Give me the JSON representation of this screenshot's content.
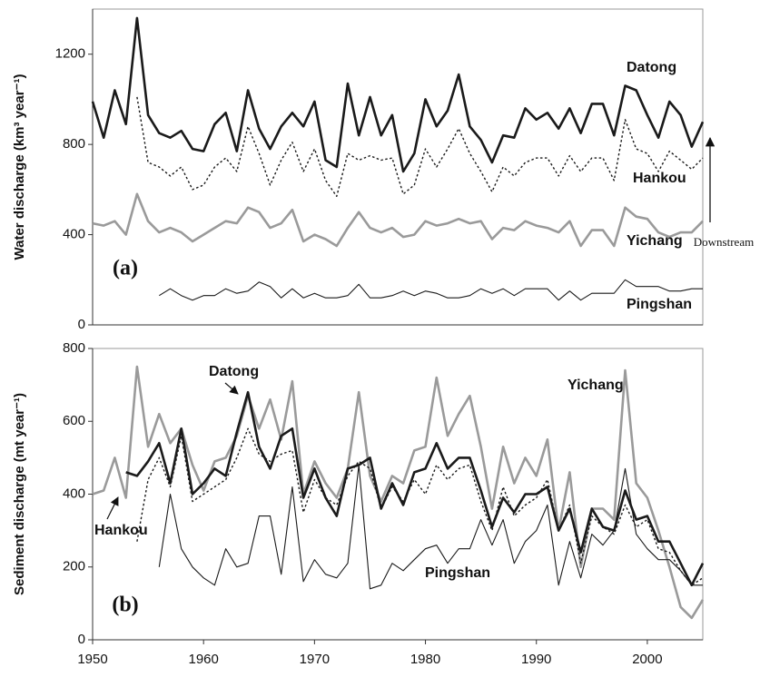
{
  "chart_data": [
    {
      "type": "line",
      "ylabel": "Water discharge (km³ year⁻¹)",
      "x": [
        1950,
        1951,
        1952,
        1953,
        1954,
        1955,
        1956,
        1957,
        1958,
        1959,
        1960,
        1961,
        1962,
        1963,
        1964,
        1965,
        1966,
        1967,
        1968,
        1969,
        1970,
        1971,
        1972,
        1973,
        1974,
        1975,
        1976,
        1977,
        1978,
        1979,
        1980,
        1981,
        1982,
        1983,
        1984,
        1985,
        1986,
        1987,
        1988,
        1989,
        1990,
        1991,
        1992,
        1993,
        1994,
        1995,
        1996,
        1997,
        1998,
        1999,
        2000,
        2001,
        2002,
        2003,
        2004,
        2005
      ],
      "xlim": [
        1950,
        2005
      ],
      "ylim": [
        0,
        1400
      ],
      "yticks": [
        0,
        400,
        800,
        1200
      ],
      "annotations": [
        "(a)",
        "Downstream"
      ],
      "series": [
        {
          "name": "Datong",
          "color": "#1a1a1a",
          "thick": true,
          "linestyle": "solid",
          "values": [
            990,
            830,
            1040,
            890,
            1360,
            930,
            850,
            830,
            860,
            780,
            770,
            890,
            940,
            770,
            1040,
            870,
            780,
            880,
            940,
            880,
            990,
            730,
            700,
            1070,
            840,
            1010,
            840,
            930,
            680,
            760,
            1000,
            880,
            950,
            1110,
            880,
            820,
            720,
            840,
            830,
            960,
            910,
            940,
            870,
            960,
            850,
            980,
            980,
            840,
            1060,
            1040,
            930,
            830,
            990,
            930,
            790,
            900
          ]
        },
        {
          "name": "Hankou",
          "color": "#1a1a1a",
          "thick": false,
          "linestyle": "dotted",
          "values": [
            null,
            null,
            null,
            null,
            1010,
            720,
            700,
            660,
            700,
            600,
            620,
            700,
            740,
            680,
            880,
            760,
            620,
            730,
            810,
            680,
            780,
            640,
            570,
            760,
            730,
            750,
            730,
            740,
            580,
            620,
            780,
            700,
            780,
            870,
            760,
            680,
            590,
            700,
            660,
            720,
            740,
            740,
            660,
            750,
            680,
            740,
            740,
            640,
            910,
            780,
            760,
            680,
            770,
            730,
            690,
            740
          ]
        },
        {
          "name": "Yichang",
          "color": "#9a9a9a",
          "thick": true,
          "linestyle": "solid",
          "values": [
            450,
            440,
            460,
            400,
            580,
            460,
            410,
            430,
            410,
            370,
            400,
            430,
            460,
            450,
            520,
            500,
            430,
            450,
            510,
            370,
            400,
            380,
            350,
            430,
            500,
            430,
            410,
            430,
            390,
            400,
            460,
            440,
            450,
            470,
            450,
            460,
            380,
            430,
            420,
            460,
            440,
            430,
            410,
            460,
            350,
            420,
            420,
            350,
            520,
            480,
            470,
            410,
            390,
            410,
            410,
            460
          ]
        },
        {
          "name": "Pingshan",
          "color": "#1a1a1a",
          "thick": false,
          "linestyle": "solid",
          "values": [
            null,
            null,
            null,
            null,
            null,
            null,
            130,
            160,
            130,
            110,
            130,
            130,
            160,
            140,
            150,
            190,
            170,
            120,
            160,
            120,
            140,
            120,
            120,
            130,
            180,
            120,
            120,
            130,
            150,
            130,
            150,
            140,
            120,
            120,
            130,
            160,
            140,
            160,
            130,
            160,
            160,
            160,
            110,
            150,
            110,
            140,
            140,
            140,
            200,
            170,
            170,
            170,
            150,
            150,
            160,
            160
          ]
        }
      ]
    },
    {
      "type": "line",
      "ylabel": "Sediment discharge (mt year⁻¹)",
      "x": [
        1950,
        1951,
        1952,
        1953,
        1954,
        1955,
        1956,
        1957,
        1958,
        1959,
        1960,
        1961,
        1962,
        1963,
        1964,
        1965,
        1966,
        1967,
        1968,
        1969,
        1970,
        1971,
        1972,
        1973,
        1974,
        1975,
        1976,
        1977,
        1978,
        1979,
        1980,
        1981,
        1982,
        1983,
        1984,
        1985,
        1986,
        1987,
        1988,
        1989,
        1990,
        1991,
        1992,
        1993,
        1994,
        1995,
        1996,
        1997,
        1998,
        1999,
        2000,
        2001,
        2002,
        2003,
        2004,
        2005
      ],
      "xlim": [
        1950,
        2005
      ],
      "xticks": [
        1950,
        1960,
        1970,
        1980,
        1990,
        2000
      ],
      "ylim": [
        0,
        800
      ],
      "yticks": [
        0,
        200,
        400,
        600,
        800
      ],
      "annotations": [
        "(b)"
      ],
      "series": [
        {
          "name": "Yichang",
          "color": "#9a9a9a",
          "thick": true,
          "linestyle": "solid",
          "values": [
            400,
            410,
            500,
            390,
            750,
            530,
            620,
            540,
            580,
            480,
            410,
            490,
            500,
            560,
            670,
            580,
            660,
            550,
            710,
            400,
            490,
            430,
            390,
            470,
            680,
            450,
            380,
            450,
            430,
            520,
            530,
            720,
            560,
            620,
            670,
            530,
            360,
            530,
            430,
            500,
            450,
            550,
            300,
            460,
            200,
            360,
            360,
            330,
            740,
            430,
            390,
            300,
            200,
            90,
            60,
            110
          ]
        },
        {
          "name": "Pingshan",
          "color": "#1a1a1a",
          "thick": false,
          "linestyle": "solid",
          "values": [
            null,
            null,
            null,
            null,
            null,
            null,
            200,
            400,
            250,
            200,
            170,
            150,
            250,
            200,
            210,
            340,
            340,
            180,
            420,
            160,
            220,
            180,
            170,
            210,
            480,
            140,
            150,
            210,
            190,
            220,
            250,
            260,
            210,
            250,
            250,
            330,
            260,
            330,
            210,
            270,
            300,
            370,
            150,
            270,
            170,
            290,
            260,
            300,
            470,
            290,
            250,
            220,
            220,
            190,
            150,
            150
          ]
        },
        {
          "name": "Hankou",
          "color": "#1a1a1a",
          "thick": false,
          "linestyle": "dotted",
          "values": [
            null,
            null,
            null,
            null,
            270,
            440,
            500,
            420,
            560,
            380,
            400,
            420,
            440,
            500,
            580,
            510,
            490,
            510,
            520,
            350,
            440,
            390,
            370,
            450,
            490,
            470,
            360,
            420,
            380,
            440,
            400,
            480,
            440,
            470,
            480,
            380,
            300,
            420,
            340,
            370,
            390,
            440,
            300,
            370,
            210,
            340,
            310,
            290,
            370,
            310,
            330,
            250,
            240,
            190,
            150,
            170
          ]
        },
        {
          "name": "Datong",
          "color": "#1a1a1a",
          "thick": true,
          "linestyle": "solid",
          "values": [
            null,
            null,
            null,
            460,
            450,
            490,
            540,
            430,
            580,
            400,
            430,
            470,
            450,
            570,
            680,
            530,
            470,
            560,
            580,
            390,
            470,
            390,
            340,
            470,
            480,
            500,
            360,
            430,
            370,
            460,
            470,
            540,
            470,
            500,
            500,
            410,
            310,
            390,
            350,
            400,
            400,
            420,
            300,
            360,
            240,
            360,
            310,
            300,
            410,
            330,
            340,
            270,
            270,
            210,
            150,
            210
          ]
        }
      ]
    }
  ]
}
